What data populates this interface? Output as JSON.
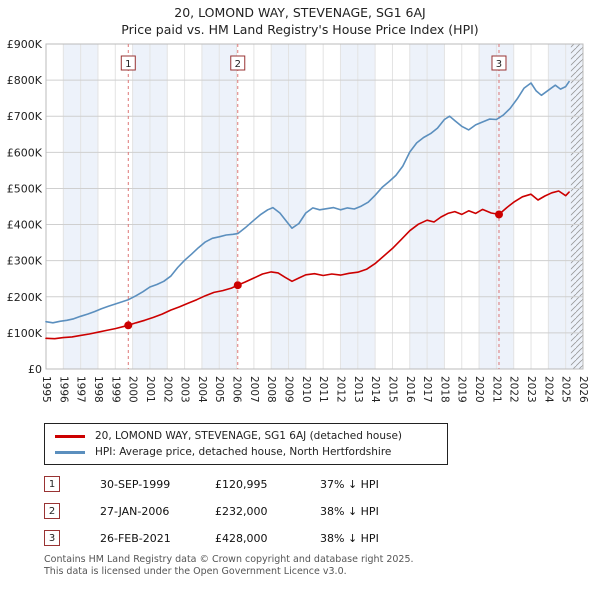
{
  "header": {
    "title": "20, LOMOND WAY, STEVENAGE, SG1 6AJ",
    "subtitle": "Price paid vs. HM Land Registry's House Price Index (HPI)"
  },
  "chart_data": {
    "type": "line",
    "x_range": [
      1995,
      2026
    ],
    "y_range": [
      0,
      900
    ],
    "y_step": 100,
    "y_tick_labels": [
      "£0",
      "£100K",
      "£200K",
      "£300K",
      "£400K",
      "£500K",
      "£600K",
      "£700K",
      "£800K",
      "£900K"
    ],
    "x_ticks": [
      1995,
      1996,
      1997,
      1998,
      1999,
      2000,
      2001,
      2002,
      2003,
      2004,
      2005,
      2006,
      2007,
      2008,
      2009,
      2010,
      2011,
      2012,
      2013,
      2014,
      2015,
      2016,
      2017,
      2018,
      2019,
      2020,
      2021,
      2022,
      2023,
      2024,
      2025,
      2026
    ],
    "grid": true,
    "legend_position": "bottom",
    "band_color": "#edf2fa",
    "dash_color": "#dd7777",
    "box_border_color": "#993333",
    "shaded_bands": [
      [
        1996,
        1998
      ],
      [
        2000,
        2002
      ],
      [
        2004,
        2006
      ],
      [
        2008,
        2010
      ],
      [
        2012,
        2014
      ],
      [
        2016,
        2018
      ],
      [
        2020,
        2022
      ],
      [
        2024,
        2026
      ]
    ],
    "hatch_region": [
      2025.3,
      2026
    ],
    "units": "GBP thousands",
    "series": [
      {
        "name": "20, LOMOND WAY, STEVENAGE, SG1 6AJ (detached house)",
        "color": "#cc0000",
        "x": [
          1995,
          1995.5,
          1996,
          1996.5,
          1997,
          1997.5,
          1998,
          1998.5,
          1999,
          1999.75,
          2000.2,
          2000.7,
          2001.2,
          2001.7,
          2002.2,
          2002.7,
          2003.2,
          2003.7,
          2004.2,
          2004.7,
          2005.2,
          2005.7,
          2006.07,
          2006.5,
          2007,
          2007.5,
          2008,
          2008.4,
          2008.8,
          2009.2,
          2009.6,
          2010,
          2010.5,
          2011,
          2011.5,
          2012,
          2012.5,
          2013,
          2013.5,
          2014,
          2014.5,
          2015,
          2015.5,
          2016,
          2016.5,
          2017,
          2017.4,
          2017.8,
          2018.2,
          2018.6,
          2019,
          2019.4,
          2019.8,
          2020.2,
          2020.7,
          2021.15,
          2021.6,
          2022,
          2022.5,
          2023,
          2023.4,
          2023.8,
          2024.2,
          2024.6,
          2025,
          2025.2
        ],
        "values": [
          85,
          84,
          87,
          89,
          93,
          97,
          102,
          107,
          112,
          121,
          128,
          135,
          143,
          152,
          163,
          172,
          182,
          192,
          203,
          212,
          217,
          224,
          232,
          241,
          252,
          263,
          269,
          266,
          254,
          243,
          252,
          261,
          264,
          259,
          263,
          260,
          265,
          268,
          276,
          292,
          313,
          334,
          358,
          383,
          401,
          412,
          407,
          421,
          431,
          436,
          428,
          438,
          431,
          442,
          432,
          428,
          447,
          462,
          477,
          484,
          468,
          479,
          488,
          493,
          480,
          490
        ]
      },
      {
        "name": "HPI: Average price, detached house, North Hertfordshire",
        "color": "#5b8fbe",
        "x": [
          1995,
          1995.4,
          1995.8,
          1996.2,
          1996.6,
          1997,
          1997.4,
          1997.8,
          1998.2,
          1998.6,
          1999,
          1999.4,
          1999.75,
          2000.2,
          2000.6,
          2001,
          2001.4,
          2001.8,
          2002.2,
          2002.6,
          2003,
          2003.4,
          2003.8,
          2004.2,
          2004.6,
          2005,
          2005.4,
          2005.8,
          2006.07,
          2006.5,
          2007,
          2007.4,
          2007.8,
          2008.1,
          2008.5,
          2008.9,
          2009.2,
          2009.6,
          2010,
          2010.4,
          2010.8,
          2011.2,
          2011.6,
          2012,
          2012.4,
          2012.8,
          2013.2,
          2013.6,
          2014,
          2014.4,
          2014.8,
          2015.2,
          2015.6,
          2016,
          2016.4,
          2016.8,
          2017.2,
          2017.6,
          2018,
          2018.3,
          2018.6,
          2019,
          2019.4,
          2019.8,
          2020.2,
          2020.6,
          2021,
          2021.4,
          2021.8,
          2022.2,
          2022.6,
          2023,
          2023.3,
          2023.6,
          2024,
          2024.4,
          2024.7,
          2025,
          2025.2
        ],
        "values": [
          131,
          128,
          132,
          135,
          139,
          146,
          152,
          159,
          167,
          174,
          180,
          186,
          192,
          203,
          214,
          227,
          234,
          243,
          257,
          281,
          301,
          318,
          336,
          352,
          362,
          366,
          371,
          373,
          375,
          391,
          412,
          428,
          441,
          447,
          432,
          408,
          390,
          403,
          432,
          446,
          441,
          444,
          447,
          441,
          446,
          443,
          451,
          462,
          481,
          503,
          519,
          536,
          562,
          601,
          626,
          641,
          652,
          667,
          691,
          700,
          688,
          672,
          662,
          676,
          684,
          692,
          691,
          703,
          722,
          748,
          778,
          792,
          770,
          758,
          772,
          786,
          775,
          782,
          796
        ]
      }
    ],
    "markers": [
      {
        "label": "1",
        "x": 1999.75,
        "y": 121
      },
      {
        "label": "2",
        "x": 2006.07,
        "y": 232
      },
      {
        "label": "3",
        "x": 2021.15,
        "y": 428
      }
    ],
    "title": "20, LOMOND WAY, STEVENAGE, SG1 6AJ",
    "subtitle": "Price paid vs. HM Land Registry's House Price Index (HPI)"
  },
  "transactions": [
    {
      "num": "1",
      "date": "30-SEP-1999",
      "price": "£120,995",
      "hpi": "37% ↓ HPI"
    },
    {
      "num": "2",
      "date": "27-JAN-2006",
      "price": "£232,000",
      "hpi": "38% ↓ HPI"
    },
    {
      "num": "3",
      "date": "26-FEB-2021",
      "price": "£428,000",
      "hpi": "38% ↓ HPI"
    }
  ],
  "footer": {
    "line1": "Contains HM Land Registry data © Crown copyright and database right 2025.",
    "line2": "This data is licensed under the Open Government Licence v3.0."
  }
}
